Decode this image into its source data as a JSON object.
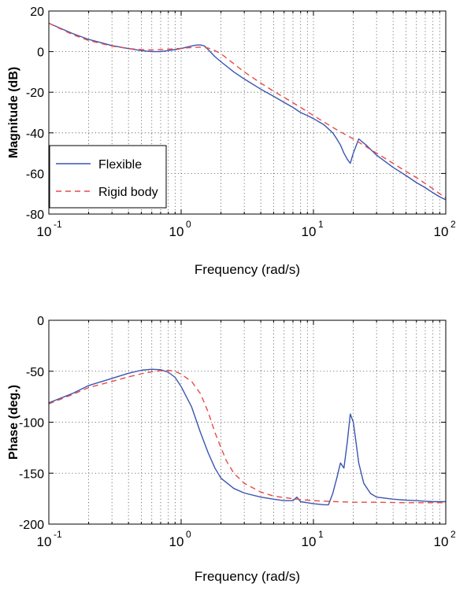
{
  "chart_data": [
    {
      "type": "line",
      "xscale": "log",
      "xlim": [
        0.1,
        100
      ],
      "ylim": [
        -80,
        20
      ],
      "xlabel": "Frequency (rad/s)",
      "ylabel": "Magnitude (dB)",
      "xticks": [
        {
          "value": 0.1,
          "base": "10",
          "exp": "-1"
        },
        {
          "value": 1,
          "base": "10",
          "exp": "0"
        },
        {
          "value": 10,
          "base": "10",
          "exp": "1"
        },
        {
          "value": 100,
          "base": "10",
          "exp": "2"
        }
      ],
      "yticks": [
        {
          "value": 20,
          "label": "20"
        },
        {
          "value": 0,
          "label": "0"
        },
        {
          "value": -20,
          "label": "-20"
        },
        {
          "value": -40,
          "label": "-40"
        },
        {
          "value": -60,
          "label": "-60"
        },
        {
          "value": -80,
          "label": "-80"
        }
      ],
      "grid": true,
      "legend": "lower-left",
      "series": [
        {
          "name": "Flexible",
          "color": "#3a55b0",
          "dash": "solid",
          "x": [
            0.1,
            0.15,
            0.2,
            0.3,
            0.4,
            0.5,
            0.6,
            0.7,
            0.8,
            0.9,
            1.0,
            1.1,
            1.2,
            1.3,
            1.4,
            1.5,
            1.6,
            1.8,
            2,
            2.5,
            3,
            4,
            5,
            6,
            7,
            8,
            9,
            10,
            12,
            14,
            15,
            16,
            17,
            18,
            19,
            20,
            22,
            25,
            30,
            40,
            50,
            60,
            70,
            80,
            90,
            100
          ],
          "y": [
            14,
            9,
            6,
            3,
            1.5,
            0.5,
            0,
            0,
            0.5,
            1.0,
            1.5,
            2.2,
            2.8,
            3.2,
            3.3,
            2.8,
            1.0,
            -2.5,
            -5,
            -10,
            -13.5,
            -18.5,
            -22,
            -25,
            -27.5,
            -30,
            -31.5,
            -33,
            -36,
            -40,
            -43,
            -46,
            -50,
            -53,
            -55,
            -50,
            -43,
            -46,
            -51,
            -57,
            -61,
            -64.5,
            -67,
            -69.5,
            -71.5,
            -73
          ]
        },
        {
          "name": "Rigid body",
          "color": "#e84a4a",
          "dash": "dashed",
          "x": [
            0.1,
            0.15,
            0.2,
            0.3,
            0.4,
            0.5,
            0.6,
            0.7,
            0.8,
            1.0,
            1.2,
            1.4,
            1.6,
            1.8,
            2.0,
            2.5,
            3,
            4,
            5,
            6,
            8,
            10,
            15,
            20,
            30,
            40,
            50,
            60,
            70,
            80,
            90,
            100
          ],
          "y": [
            14,
            8.5,
            5.5,
            2.7,
            1.5,
            1.0,
            0.8,
            1.0,
            1.2,
            1.6,
            2.0,
            2.2,
            1.8,
            0.5,
            -1,
            -6,
            -10,
            -15.5,
            -19.5,
            -22.5,
            -27.5,
            -31.5,
            -38.5,
            -43,
            -50,
            -55,
            -59,
            -62,
            -65,
            -67.5,
            -70,
            -72
          ]
        }
      ]
    },
    {
      "type": "line",
      "xscale": "log",
      "xlim": [
        0.1,
        100
      ],
      "ylim": [
        -200,
        0
      ],
      "xlabel": "Frequency (rad/s)",
      "ylabel": "Phase (deg.)",
      "xticks": [
        {
          "value": 0.1,
          "base": "10",
          "exp": "-1"
        },
        {
          "value": 1,
          "base": "10",
          "exp": "0"
        },
        {
          "value": 10,
          "base": "10",
          "exp": "1"
        },
        {
          "value": 100,
          "base": "10",
          "exp": "2"
        }
      ],
      "yticks": [
        {
          "value": 0,
          "label": "0"
        },
        {
          "value": -50,
          "label": "-50"
        },
        {
          "value": -100,
          "label": "-100"
        },
        {
          "value": -150,
          "label": "-150"
        },
        {
          "value": -200,
          "label": "-200"
        }
      ],
      "grid": true,
      "series": [
        {
          "name": "Flexible",
          "color": "#3a55b0",
          "dash": "solid",
          "x": [
            0.1,
            0.15,
            0.2,
            0.3,
            0.4,
            0.5,
            0.6,
            0.7,
            0.8,
            0.9,
            1.0,
            1.2,
            1.4,
            1.6,
            1.8,
            2.0,
            2.5,
            3,
            4,
            5,
            6,
            7,
            7.5,
            8,
            9,
            10,
            12,
            13,
            14,
            15,
            16,
            17,
            18,
            19,
            20,
            21,
            22,
            24,
            27,
            30,
            40,
            50,
            60,
            70,
            80,
            100
          ],
          "y": [
            -81,
            -72,
            -64,
            -57,
            -52,
            -49,
            -48,
            -48.5,
            -51,
            -56,
            -65,
            -85,
            -110,
            -130,
            -145,
            -155,
            -165,
            -169.5,
            -173.5,
            -175.5,
            -177,
            -177,
            -173.5,
            -178,
            -179,
            -180,
            -181,
            -181,
            -170,
            -155,
            -140,
            -145,
            -120,
            -92,
            -100,
            -120,
            -140,
            -160,
            -170,
            -173.5,
            -175.5,
            -176.5,
            -177,
            -177.5,
            -178,
            -178
          ]
        },
        {
          "name": "Rigid body",
          "color": "#e84a4a",
          "dash": "dashed",
          "x": [
            0.1,
            0.15,
            0.2,
            0.3,
            0.4,
            0.5,
            0.6,
            0.7,
            0.8,
            0.9,
            1.0,
            1.2,
            1.4,
            1.6,
            1.8,
            2.0,
            2.2,
            2.5,
            3,
            4,
            5,
            6,
            8,
            10,
            15,
            20,
            30,
            50,
            100
          ],
          "y": [
            -82,
            -73,
            -66,
            -60,
            -55.5,
            -52.5,
            -50.5,
            -49.5,
            -49,
            -50,
            -53,
            -60,
            -72,
            -90,
            -110,
            -125,
            -138,
            -150,
            -160,
            -168.5,
            -172.5,
            -174,
            -176,
            -177,
            -178,
            -178.5,
            -178.5,
            -179,
            -179
          ]
        }
      ]
    }
  ]
}
